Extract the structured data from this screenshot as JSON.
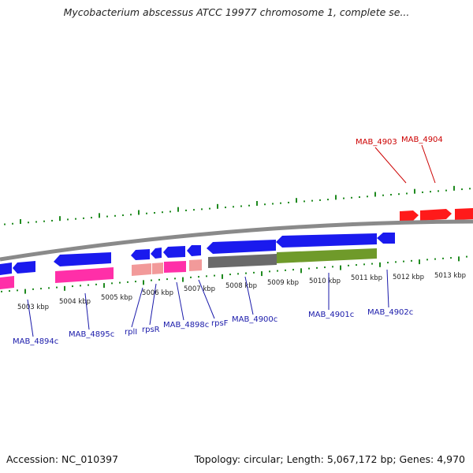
{
  "header": {
    "title": "Mycobacterium abscessus ATCC 19977 chromosome 1, complete se..."
  },
  "footer": {
    "accession": "Accession: NC_010397",
    "summary": "Topology: circular; Length: 5,067,172 bp; Genes: 4,970"
  },
  "colors": {
    "backbone": "#8a8a8a",
    "tick": "#1f8a1f",
    "forward_gene": "#ff1a1a",
    "reverse_gene": "#1a1aee",
    "pink_feature": "#ff2fa8",
    "salmon_feature": "#f29a9a",
    "gray_feature": "#6a6a6a",
    "olive_feature": "#6f9a2a",
    "label_blue": "#1a1aaa",
    "label_red": "#cc0000"
  },
  "ruler": {
    "kbp_labels": [
      "5003 kbp",
      "5004 kbp",
      "5005 kbp",
      "5006 kbp",
      "5007 kbp",
      "5008 kbp",
      "5009 kbp",
      "5010 kbp",
      "5011 kbp",
      "5012 kbp",
      "5013 kbp"
    ]
  },
  "genes": {
    "MAB_4894c": "MAB_4894c",
    "MAB_4895c": "MAB_4895c",
    "rplI": "rplI",
    "rpsR": "rpsR",
    "MAB_4898c": "MAB_4898c",
    "rpsF": "rpsF",
    "MAB_4900c": "MAB_4900c",
    "MAB_4901c": "MAB_4901c",
    "MAB_4902c": "MAB_4902c",
    "MAB_4903": "MAB_4903",
    "MAB_4904": "MAB_4904"
  }
}
